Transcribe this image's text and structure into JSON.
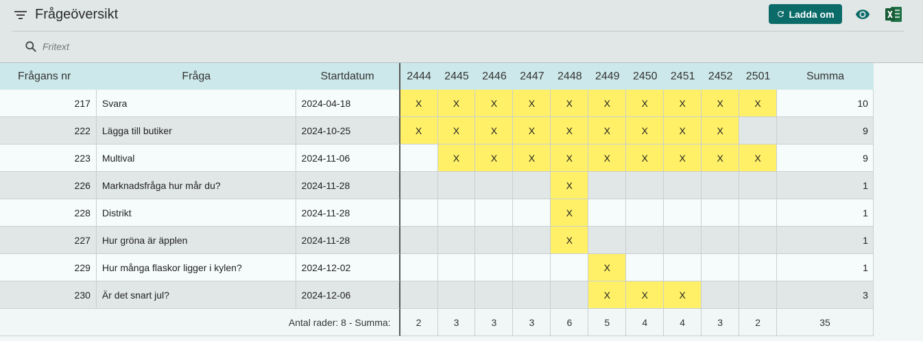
{
  "header": {
    "title": "Frågeöversikt",
    "reload_label": "Ladda om",
    "search_placeholder": "Fritext"
  },
  "table": {
    "columns": {
      "nr": "Frågans nr",
      "question": "Fråga",
      "start": "Startdatum",
      "weeks": [
        "2444",
        "2445",
        "2446",
        "2447",
        "2448",
        "2449",
        "2450",
        "2451",
        "2452",
        "2501"
      ],
      "sum": "Summa"
    },
    "mark": "X",
    "rows": [
      {
        "nr": "217",
        "question": "Svara",
        "start": "2024-04-18",
        "marks": [
          1,
          1,
          1,
          1,
          1,
          1,
          1,
          1,
          1,
          1
        ],
        "sum": "10"
      },
      {
        "nr": "222",
        "question": "Lägga till butiker",
        "start": "2024-10-25",
        "marks": [
          1,
          1,
          1,
          1,
          1,
          1,
          1,
          1,
          1,
          0
        ],
        "sum": "9"
      },
      {
        "nr": "223",
        "question": "Multival",
        "start": "2024-11-06",
        "marks": [
          0,
          1,
          1,
          1,
          1,
          1,
          1,
          1,
          1,
          1
        ],
        "sum": "9"
      },
      {
        "nr": "226",
        "question": "Marknadsfråga hur mår du?",
        "start": "2024-11-28",
        "marks": [
          0,
          0,
          0,
          0,
          1,
          0,
          0,
          0,
          0,
          0
        ],
        "sum": "1"
      },
      {
        "nr": "228",
        "question": "Distrikt",
        "start": "2024-11-28",
        "marks": [
          0,
          0,
          0,
          0,
          1,
          0,
          0,
          0,
          0,
          0
        ],
        "sum": "1"
      },
      {
        "nr": "227",
        "question": "Hur gröna är äpplen",
        "start": "2024-11-28",
        "marks": [
          0,
          0,
          0,
          0,
          1,
          0,
          0,
          0,
          0,
          0
        ],
        "sum": "1"
      },
      {
        "nr": "229",
        "question": "Hur många flaskor ligger i kylen?",
        "start": "2024-12-02",
        "marks": [
          0,
          0,
          0,
          0,
          0,
          1,
          0,
          0,
          0,
          0
        ],
        "sum": "1"
      },
      {
        "nr": "230",
        "question": "Är det snart jul?",
        "start": "2024-12-06",
        "marks": [
          0,
          0,
          0,
          0,
          0,
          1,
          1,
          1,
          0,
          0
        ],
        "sum": "3"
      }
    ],
    "footer": {
      "label": "Antal rader: 8   -   Summa:",
      "week_sums": [
        "2",
        "3",
        "3",
        "3",
        "6",
        "5",
        "4",
        "4",
        "3",
        "2"
      ],
      "total": "35"
    }
  },
  "colors": {
    "accent": "#0b6b69",
    "mark": "#fff068",
    "header_bg": "#cde8ea",
    "excel_green": "#1e7145"
  }
}
